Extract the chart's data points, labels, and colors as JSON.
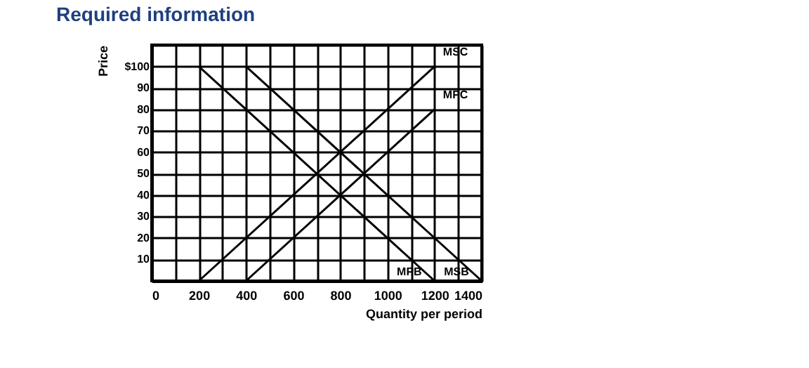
{
  "chart_data": {
    "type": "line",
    "title": "Required information",
    "xlabel": "Quantity per period",
    "ylabel": "Price",
    "xlim": [
      0,
      1400
    ],
    "ylim": [
      0,
      110
    ],
    "xticks": [
      0,
      {
        "value": 100,
        "label": null
      },
      200,
      {
        "value": 300,
        "label": null
      },
      400,
      {
        "value": 500,
        "label": null
      },
      600,
      {
        "value": 700,
        "label": null
      },
      800,
      {
        "value": 900,
        "label": null
      },
      1000,
      {
        "value": 1100,
        "label": null
      },
      1200,
      {
        "value": 1300,
        "label": null
      },
      1400
    ],
    "yticks": [
      10,
      20,
      30,
      40,
      50,
      60,
      70,
      80,
      90,
      {
        "value": 100,
        "label": "$100"
      },
      {
        "value": 110,
        "label": null
      }
    ],
    "grid": true,
    "marker": "none",
    "line_style": "solid",
    "series": [
      {
        "name": "MSC",
        "color": "#000000",
        "x": [
          200,
          1200
        ],
        "values": [
          0,
          100
        ]
      },
      {
        "name": "MPC",
        "color": "#000000",
        "x": [
          400,
          1200
        ],
        "values": [
          0,
          80
        ]
      },
      {
        "name": "MPB",
        "color": "#000000",
        "x": [
          200,
          1200
        ],
        "values": [
          100,
          0
        ]
      },
      {
        "name": "MSB",
        "color": "#000000",
        "x": [
          400,
          1400
        ],
        "values": [
          100,
          0
        ]
      }
    ]
  }
}
